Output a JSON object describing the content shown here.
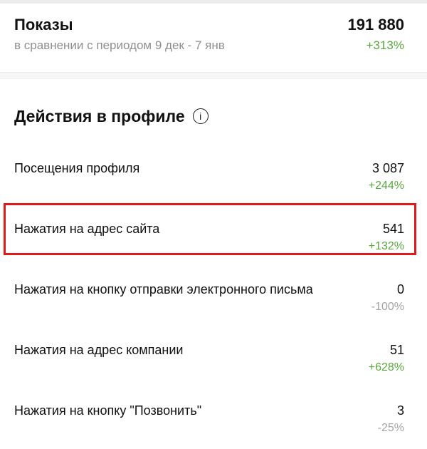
{
  "colors": {
    "positive_delta": "#58a93c",
    "muted_delta": "#a4a4a4",
    "secondary_text": "#8e8e93",
    "highlight_border": "#e0191a",
    "divider_band": "#f6f6f7"
  },
  "summary": {
    "title": "Показы",
    "value": "191 880",
    "comparison": "в сравнении с периодом 9 дек - 7 янв",
    "delta": "+313%"
  },
  "section": {
    "title": "Действия в профиле",
    "info_icon_glyph": "i",
    "rows": [
      {
        "label": "Посещения профиля",
        "value": "3 087",
        "delta": "+244%",
        "trend": "up"
      },
      {
        "label": "Нажатия на адрес сайта",
        "value": "541",
        "delta": "+132%",
        "trend": "up",
        "highlighted": true
      },
      {
        "label": "Нажатия на кнопку отправки электронного письма",
        "value": "0",
        "delta": "-100%",
        "trend": "down"
      },
      {
        "label": "Нажатия на адрес компании",
        "value": "51",
        "delta": "+628%",
        "trend": "up"
      },
      {
        "label": "Нажатия на кнопку \"Позвонить\"",
        "value": "3",
        "delta": "-25%",
        "trend": "down"
      }
    ]
  }
}
